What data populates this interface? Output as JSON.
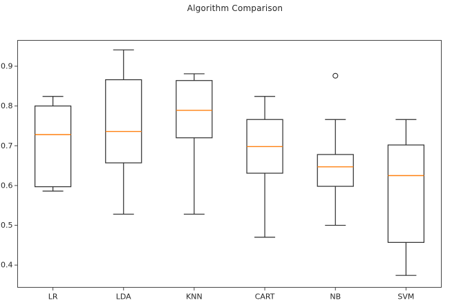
{
  "chart_data": {
    "type": "box",
    "title": "Algorithm Comparison",
    "categories": [
      "LR",
      "LDA",
      "KNN",
      "CART",
      "NB",
      "SVM"
    ],
    "series": [
      {
        "name": "LR",
        "whisker_low": 0.586,
        "q1": 0.597,
        "median": 0.728,
        "q3": 0.8,
        "whisker_high": 0.824,
        "outliers": []
      },
      {
        "name": "LDA",
        "whisker_low": 0.528,
        "q1": 0.657,
        "median": 0.736,
        "q3": 0.866,
        "whisker_high": 0.941,
        "outliers": []
      },
      {
        "name": "KNN",
        "whisker_low": 0.528,
        "q1": 0.72,
        "median": 0.789,
        "q3": 0.864,
        "whisker_high": 0.881,
        "outliers": []
      },
      {
        "name": "CART",
        "whisker_low": 0.47,
        "q1": 0.631,
        "median": 0.698,
        "q3": 0.766,
        "whisker_high": 0.824,
        "outliers": []
      },
      {
        "name": "NB",
        "whisker_low": 0.5,
        "q1": 0.598,
        "median": 0.647,
        "q3": 0.678,
        "whisker_high": 0.766,
        "outliers": [
          0.876
        ]
      },
      {
        "name": "SVM",
        "whisker_low": 0.374,
        "q1": 0.457,
        "median": 0.625,
        "q3": 0.702,
        "whisker_high": 0.766,
        "outliers": []
      }
    ],
    "xlabel": "",
    "ylabel": "",
    "ylim": [
      0.344,
      0.965
    ],
    "yticks": [
      0.4,
      0.5,
      0.6,
      0.7,
      0.8,
      0.9
    ],
    "ytick_labels": [
      "0.4",
      "0.5",
      "0.6",
      "0.7",
      "0.8",
      "0.9"
    ],
    "grid": false,
    "legend_position": "none",
    "colors": {
      "box_edge": "#2b2b2b",
      "whisker": "#2b2b2b",
      "median": "#ff7f0e",
      "outlier_edge": "#2b2b2b",
      "spine": "#444444",
      "tick_text": "#262626",
      "background": "#ffffff"
    }
  }
}
